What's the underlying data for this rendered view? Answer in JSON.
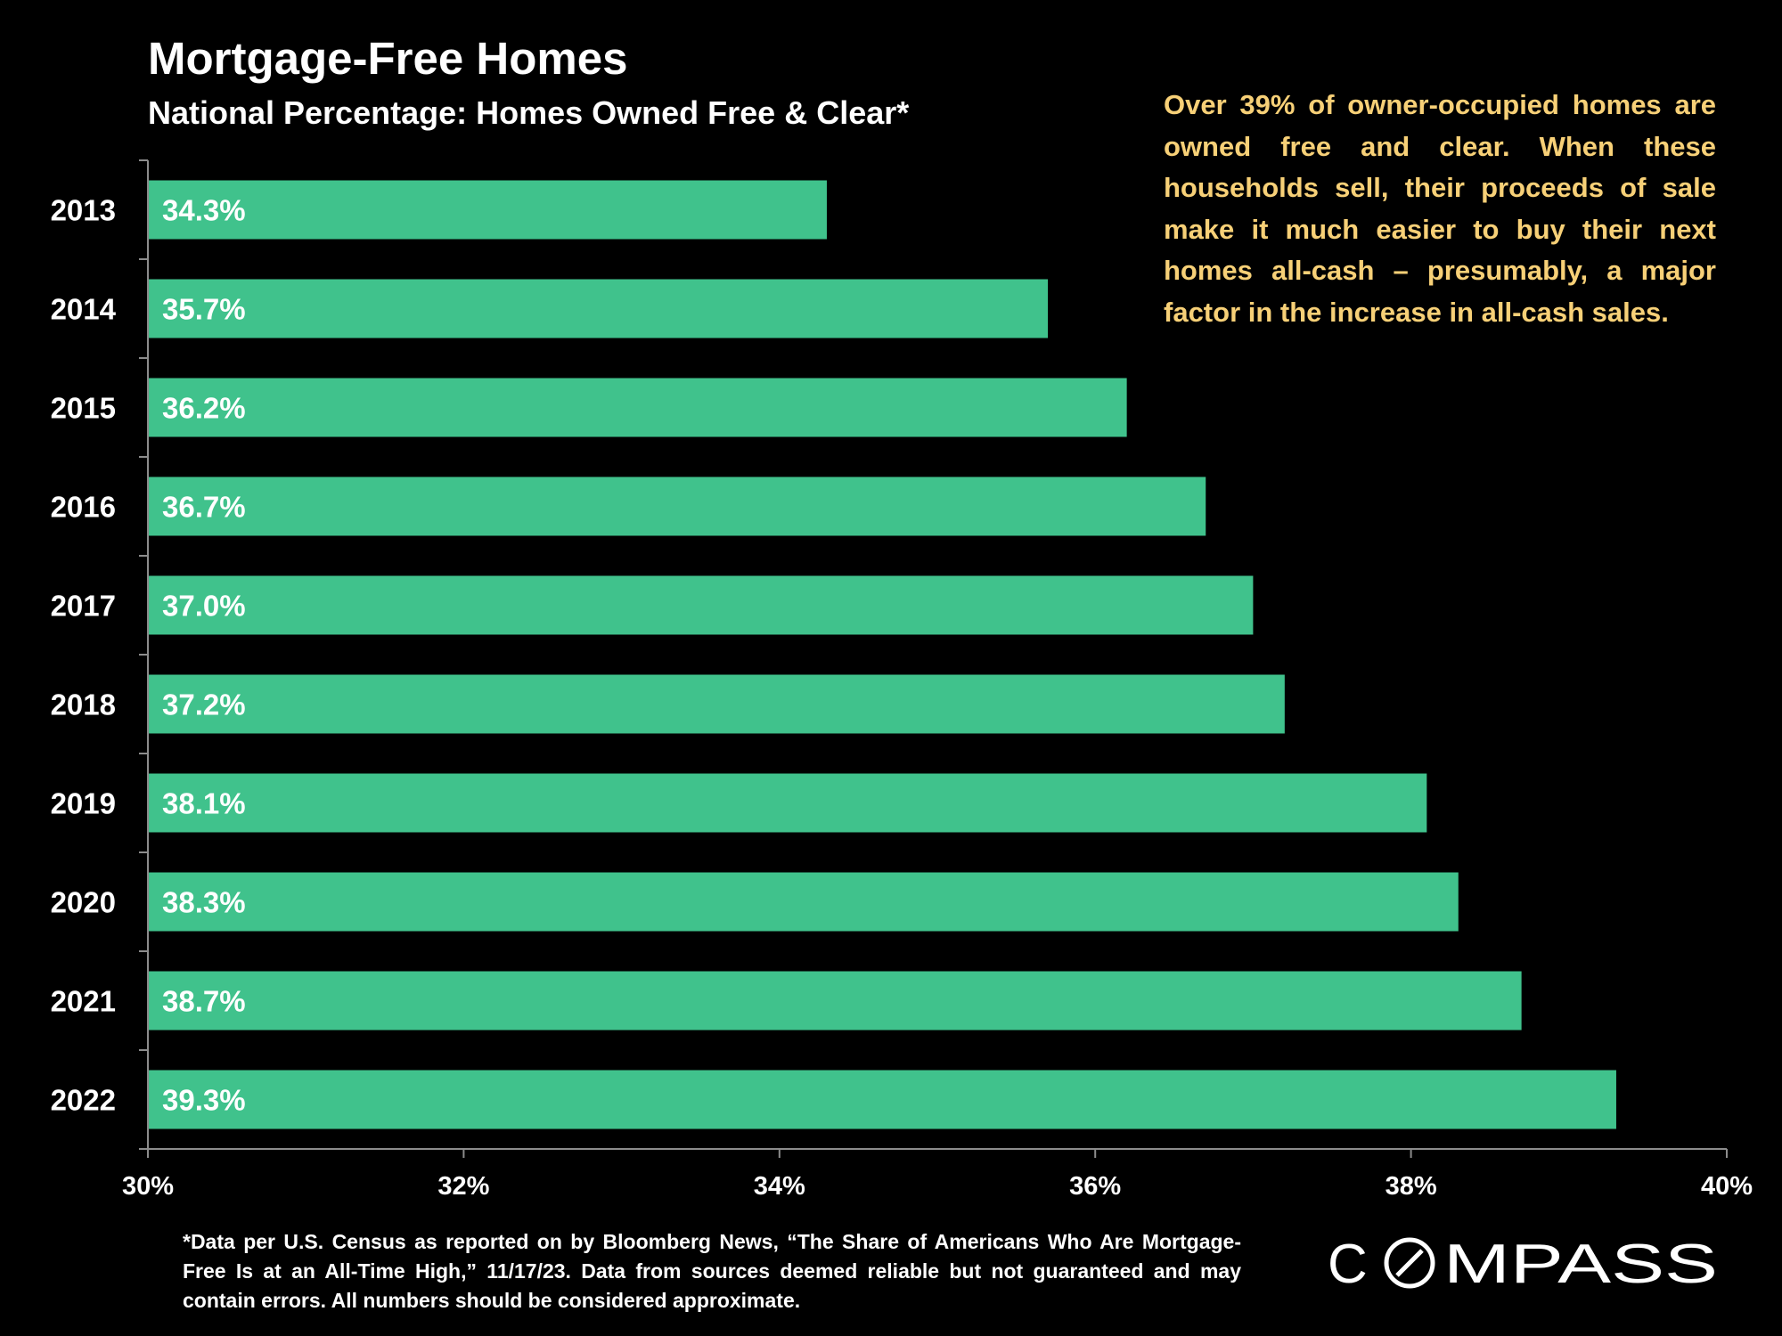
{
  "title": "Mortgage-Free Homes",
  "subtitle": "National Percentage: Homes Owned Free & Clear*",
  "callout": "Over 39% of owner-occupied homes are owned free and clear. When these households sell, their proceeds of sale make it much easier to buy their next homes all-cash – presumably, a major factor in the increase in all-cash sales.",
  "footnote": "*Data per U.S. Census as reported on by Bloomberg News, “The Share of Americans Who Are Mortgage-Free Is at an All-Time High,” 11/17/23. Data from sources deemed reliable but not guaranteed and may contain errors. All numbers should be considered approximate.",
  "logo": {
    "text": "COMPASS",
    "icon": "compass-o-icon"
  },
  "colors": {
    "bar": "#40c28c",
    "callout_text": "#f7d077",
    "text": "#ffffff",
    "background": "#000000",
    "axis": "#8c8c8c"
  },
  "chart_data": {
    "type": "bar",
    "orientation": "horizontal",
    "categories": [
      "2013",
      "2014",
      "2015",
      "2016",
      "2017",
      "2018",
      "2019",
      "2020",
      "2021",
      "2022"
    ],
    "values": [
      34.3,
      35.7,
      36.2,
      36.7,
      37.0,
      37.2,
      38.1,
      38.3,
      38.7,
      39.3
    ],
    "data_labels": [
      "34.3%",
      "35.7%",
      "36.2%",
      "36.7%",
      "37.0%",
      "37.2%",
      "38.1%",
      "38.3%",
      "38.7%",
      "39.3%"
    ],
    "xlim": [
      30,
      40
    ],
    "x_ticks": [
      30,
      32,
      34,
      36,
      38,
      40
    ],
    "x_tick_labels": [
      "30%",
      "32%",
      "34%",
      "36%",
      "38%",
      "40%"
    ],
    "grid": false,
    "legend": "none"
  }
}
